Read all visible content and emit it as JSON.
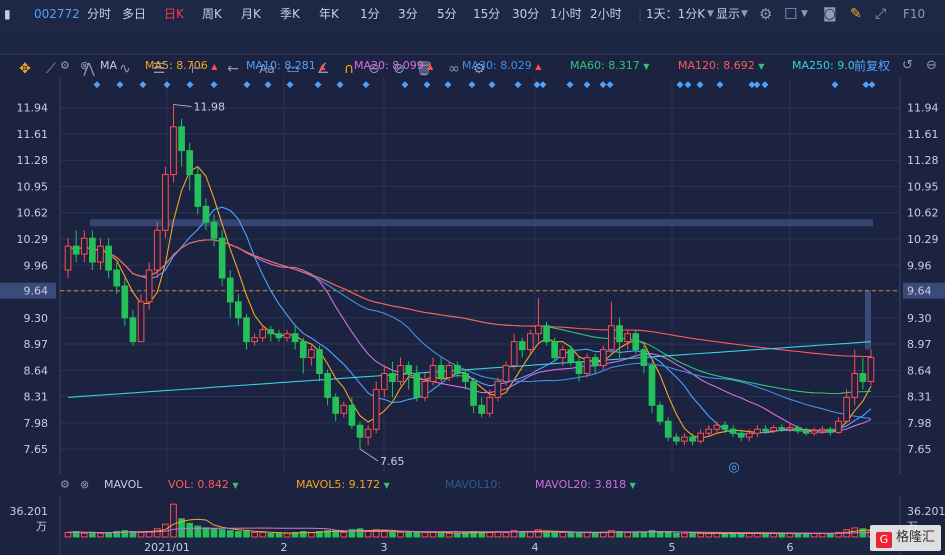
{
  "toolbar": {
    "stock_code": "002772",
    "periods": [
      {
        "label": "分时",
        "active": false
      },
      {
        "label": "多日",
        "active": false
      },
      {
        "label": "日K",
        "active": true
      },
      {
        "label": "周K",
        "active": false
      },
      {
        "label": "月K",
        "active": false
      },
      {
        "label": "季K",
        "active": false
      },
      {
        "label": "年K",
        "active": false
      },
      {
        "label": "1分",
        "active": false
      },
      {
        "label": "3分",
        "active": false
      },
      {
        "label": "5分",
        "active": false
      },
      {
        "label": "15分",
        "active": false
      },
      {
        "label": "30分",
        "active": false
      },
      {
        "label": "1小时",
        "active": false
      },
      {
        "label": "2小时",
        "active": false
      }
    ],
    "interval_select": "1天：1分K",
    "display_label": "显示",
    "f10_label": "F10"
  },
  "ma_legend": {
    "title": "MA",
    "items": [
      {
        "label": "MA5: 8.706",
        "arrow": "▲",
        "color": "#f5a623"
      },
      {
        "label": "MA10: 8.281",
        "arrow": "▲",
        "color": "#4ea3ff"
      },
      {
        "label": "MA20: 8.099",
        "arrow": "▲",
        "color": "#d46fe0"
      },
      {
        "label": "MA30: 8.029",
        "arrow": "▲",
        "color": "#3f8fe8"
      },
      {
        "label": "MA60: 8.317",
        "arrow": "▼",
        "color": "#32c27a"
      },
      {
        "label": "MA120: 8.692",
        "arrow": "▼",
        "color": "#ff5a5a"
      },
      {
        "label": "MA250: 9.0",
        "arrow": "",
        "color": "#3ad0e0"
      }
    ],
    "adjust_label": "前复权"
  },
  "vol_legend": {
    "title": "MAVOL",
    "items": [
      {
        "label": "VOL: 0.842",
        "arrow": "▼",
        "color": "#ff5a5a"
      },
      {
        "label": "MAVOL5: 9.172",
        "arrow": "▼",
        "color": "#f5a623"
      },
      {
        "label": "MAVOL10:",
        "arrow": "",
        "color": "#2f5a8a"
      },
      {
        "label": "MAVOL20: 3.818",
        "arrow": "▼",
        "color": "#d46fe0"
      }
    ],
    "max_label": "36.201",
    "unit_label": "万"
  },
  "chart_data": {
    "type": "candlestick",
    "y_ticks": [
      "11.94",
      "11.61",
      "11.28",
      "10.95",
      "10.62",
      "10.29",
      "9.96",
      "9.64",
      "9.30",
      "8.97",
      "8.64",
      "8.31",
      "7.98",
      "7.65"
    ],
    "ylim": [
      7.4,
      12.2
    ],
    "x_ticks": [
      "2021/01",
      "2",
      "3",
      "4",
      "5",
      "6"
    ],
    "current_price": "9.64",
    "annotations": [
      {
        "label": "11.98",
        "kind": "high"
      },
      {
        "label": "7.65",
        "kind": "low"
      }
    ],
    "candles": [
      [
        9.9,
        10.2,
        9.8,
        10.3
      ],
      [
        10.2,
        10.1,
        10.0,
        10.4
      ],
      [
        10.1,
        10.3,
        10.0,
        10.4
      ],
      [
        10.3,
        10.0,
        9.9,
        10.4
      ],
      [
        10.0,
        10.2,
        9.9,
        10.3
      ],
      [
        10.2,
        9.9,
        9.8,
        10.3
      ],
      [
        9.9,
        9.7,
        9.6,
        10.0
      ],
      [
        9.7,
        9.3,
        9.2,
        9.8
      ],
      [
        9.3,
        9.0,
        8.95,
        9.4
      ],
      [
        9.0,
        9.5,
        9.0,
        9.6
      ],
      [
        9.5,
        9.9,
        9.4,
        10.0
      ],
      [
        9.9,
        10.4,
        9.8,
        10.5
      ],
      [
        10.4,
        11.1,
        10.3,
        11.2
      ],
      [
        11.1,
        11.7,
        11.0,
        11.98
      ],
      [
        11.7,
        11.4,
        11.2,
        11.8
      ],
      [
        11.4,
        11.1,
        10.9,
        11.5
      ],
      [
        11.1,
        10.7,
        10.6,
        11.2
      ],
      [
        10.7,
        10.5,
        10.4,
        10.8
      ],
      [
        10.5,
        10.3,
        10.2,
        10.6
      ],
      [
        10.3,
        9.8,
        9.7,
        10.4
      ],
      [
        9.8,
        9.5,
        9.3,
        9.9
      ],
      [
        9.5,
        9.3,
        9.2,
        9.6
      ],
      [
        9.3,
        9.0,
        8.9,
        9.35
      ],
      [
        9.0,
        9.05,
        8.95,
        9.1
      ],
      [
        9.05,
        9.15,
        9.0,
        9.2
      ],
      [
        9.15,
        9.1,
        9.0,
        9.2
      ],
      [
        9.1,
        9.05,
        9.0,
        9.15
      ],
      [
        9.05,
        9.1,
        9.0,
        9.15
      ],
      [
        9.1,
        9.0,
        8.9,
        9.2
      ],
      [
        9.0,
        8.8,
        8.6,
        9.05
      ],
      [
        8.8,
        8.9,
        8.7,
        8.95
      ],
      [
        8.9,
        8.6,
        8.5,
        8.95
      ],
      [
        8.6,
        8.3,
        8.2,
        8.65
      ],
      [
        8.3,
        8.1,
        8.0,
        8.35
      ],
      [
        8.1,
        8.2,
        8.05,
        8.25
      ],
      [
        8.2,
        7.95,
        7.9,
        8.3
      ],
      [
        7.95,
        7.8,
        7.65,
        8.0
      ],
      [
        7.8,
        7.9,
        7.7,
        7.95
      ],
      [
        7.9,
        8.4,
        7.85,
        8.5
      ],
      [
        8.4,
        8.6,
        8.3,
        8.7
      ],
      [
        8.6,
        8.5,
        8.3,
        8.75
      ],
      [
        8.5,
        8.7,
        8.45,
        8.8
      ],
      [
        8.7,
        8.6,
        8.4,
        8.75
      ],
      [
        8.6,
        8.3,
        8.25,
        8.7
      ],
      [
        8.3,
        8.5,
        8.25,
        8.6
      ],
      [
        8.5,
        8.7,
        8.45,
        8.8
      ],
      [
        8.7,
        8.55,
        8.5,
        8.8
      ],
      [
        8.55,
        8.7,
        8.5,
        8.75
      ],
      [
        8.7,
        8.6,
        8.55,
        8.75
      ],
      [
        8.6,
        8.5,
        8.4,
        8.65
      ],
      [
        8.5,
        8.2,
        8.1,
        8.55
      ],
      [
        8.2,
        8.1,
        8.05,
        8.3
      ],
      [
        8.1,
        8.3,
        8.05,
        8.4
      ],
      [
        8.3,
        8.5,
        8.25,
        8.55
      ],
      [
        8.5,
        8.7,
        8.45,
        8.75
      ],
      [
        8.7,
        9.0,
        8.65,
        9.1
      ],
      [
        9.0,
        8.9,
        8.8,
        9.05
      ],
      [
        8.9,
        9.1,
        8.85,
        9.15
      ],
      [
        9.1,
        9.2,
        9.0,
        9.55
      ],
      [
        9.2,
        9.0,
        8.95,
        9.25
      ],
      [
        9.0,
        8.8,
        8.75,
        9.05
      ],
      [
        8.8,
        8.9,
        8.7,
        8.95
      ],
      [
        8.9,
        8.75,
        8.7,
        8.95
      ],
      [
        8.75,
        8.6,
        8.5,
        8.8
      ],
      [
        8.6,
        8.8,
        8.55,
        8.85
      ],
      [
        8.8,
        8.7,
        8.6,
        8.85
      ],
      [
        8.7,
        8.9,
        8.65,
        8.95
      ],
      [
        8.9,
        9.2,
        8.85,
        9.5
      ],
      [
        9.2,
        9.0,
        8.8,
        9.3
      ],
      [
        9.0,
        9.1,
        8.9,
        9.15
      ],
      [
        9.1,
        8.9,
        8.85,
        9.15
      ],
      [
        8.9,
        8.7,
        8.6,
        8.95
      ],
      [
        8.7,
        8.2,
        8.1,
        8.75
      ],
      [
        8.2,
        8.0,
        7.95,
        8.25
      ],
      [
        8.0,
        7.8,
        7.75,
        8.05
      ],
      [
        7.8,
        7.75,
        7.7,
        7.85
      ],
      [
        7.75,
        7.8,
        7.7,
        7.85
      ],
      [
        7.8,
        7.75,
        7.7,
        7.85
      ],
      [
        7.75,
        7.85,
        7.72,
        7.9
      ],
      [
        7.85,
        7.9,
        7.8,
        7.95
      ],
      [
        7.9,
        7.95,
        7.85,
        8.0
      ],
      [
        7.95,
        7.9,
        7.85,
        8.0
      ],
      [
        7.9,
        7.85,
        7.8,
        7.95
      ],
      [
        7.85,
        7.8,
        7.75,
        7.9
      ],
      [
        7.8,
        7.85,
        7.75,
        7.9
      ],
      [
        7.85,
        7.9,
        7.8,
        7.95
      ],
      [
        7.9,
        7.88,
        7.84,
        7.95
      ],
      [
        7.88,
        7.92,
        7.85,
        7.95
      ],
      [
        7.92,
        7.9,
        7.86,
        7.96
      ],
      [
        7.9,
        7.92,
        7.86,
        7.97
      ],
      [
        7.92,
        7.88,
        7.84,
        7.95
      ],
      [
        7.88,
        7.85,
        7.82,
        7.92
      ],
      [
        7.85,
        7.88,
        7.82,
        7.92
      ],
      [
        7.88,
        7.9,
        7.84,
        7.94
      ],
      [
        7.9,
        7.86,
        7.82,
        7.93
      ],
      [
        7.86,
        8.0,
        7.84,
        8.05
      ],
      [
        8.0,
        8.3,
        7.98,
        8.4
      ],
      [
        8.3,
        8.6,
        8.2,
        8.9
      ],
      [
        8.6,
        8.5,
        8.4,
        8.8
      ],
      [
        8.5,
        8.8,
        8.45,
        8.9
      ]
    ],
    "volumes": [
      5,
      6,
      4,
      5,
      4,
      5,
      6,
      7,
      6,
      5,
      6,
      9,
      14,
      36,
      20,
      15,
      12,
      10,
      9,
      8,
      7,
      6,
      6,
      5,
      5,
      4,
      4,
      4,
      5,
      6,
      5,
      6,
      7,
      7,
      5,
      8,
      9,
      6,
      8,
      7,
      6,
      5,
      5,
      6,
      5,
      5,
      4,
      4,
      4,
      5,
      6,
      5,
      5,
      6,
      5,
      7,
      6,
      6,
      8,
      6,
      5,
      5,
      5,
      5,
      5,
      4,
      5,
      7,
      6,
      5,
      5,
      5,
      7,
      6,
      6,
      4,
      4,
      4,
      4,
      4,
      4,
      4,
      4,
      4,
      4,
      4,
      4,
      4,
      4,
      4,
      4,
      4,
      4,
      4,
      4,
      5,
      8,
      10,
      9,
      7
    ],
    "ma_series": [
      {
        "name": "MA5",
        "color": "#f5a623"
      },
      {
        "name": "MA10",
        "color": "#4ea3ff"
      },
      {
        "name": "MA20",
        "color": "#d46fe0"
      },
      {
        "name": "MA30",
        "color": "#3f8fe8"
      },
      {
        "name": "MA60",
        "color": "#32c27a"
      },
      {
        "name": "MA120",
        "color": "#ff5a5a"
      },
      {
        "name": "MA250",
        "color": "#3ad0e0"
      }
    ],
    "up_color": "#ff4d4f",
    "down_color": "#24c05a"
  },
  "watermark": "格隆汇"
}
